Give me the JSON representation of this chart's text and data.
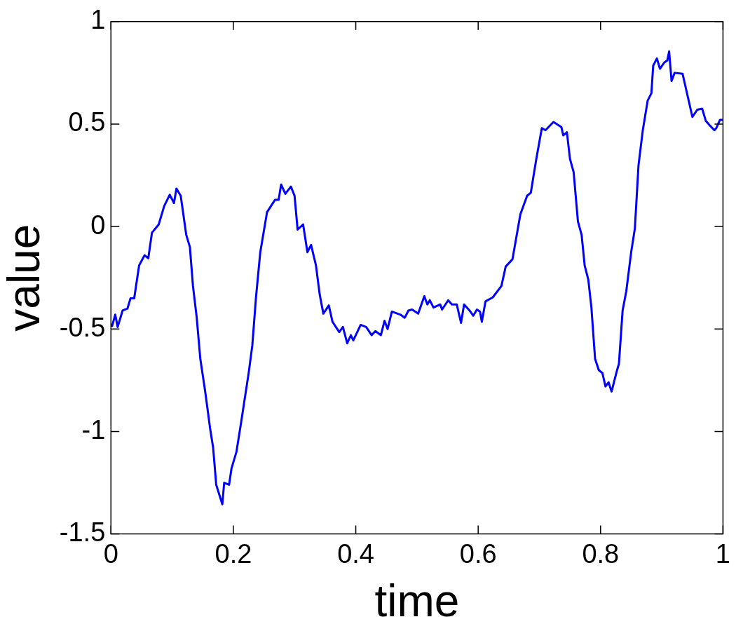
{
  "chart_data": {
    "type": "line",
    "xlabel": "time",
    "ylabel": "value",
    "xlim": [
      0,
      1
    ],
    "ylim": [
      -1.5,
      1
    ],
    "xticks": [
      0,
      0.2,
      0.4,
      0.6,
      0.8,
      1
    ],
    "yticks": [
      -1.5,
      -1,
      -0.5,
      0,
      0.5,
      1
    ],
    "grid": false,
    "legend": false,
    "marker": "none",
    "line_style": "solid",
    "series": [
      {
        "color": "#0000ff",
        "x": [
          0,
          0.002,
          0.007,
          0.011,
          0.019,
          0.027,
          0.032,
          0.038,
          0.046,
          0.055,
          0.061,
          0.067,
          0.078,
          0.087,
          0.096,
          0.103,
          0.107,
          0.114,
          0.123,
          0.129,
          0.134,
          0.14,
          0.146,
          0.154,
          0.162,
          0.167,
          0.172,
          0.182,
          0.185,
          0.193,
          0.197,
          0.205,
          0.213,
          0.225,
          0.231,
          0.237,
          0.244,
          0.255,
          0.268,
          0.274,
          0.278,
          0.285,
          0.294,
          0.3,
          0.305,
          0.314,
          0.321,
          0.327,
          0.335,
          0.341,
          0.347,
          0.356,
          0.362,
          0.373,
          0.379,
          0.386,
          0.392,
          0.396,
          0.408,
          0.417,
          0.426,
          0.432,
          0.441,
          0.447,
          0.452,
          0.459,
          0.473,
          0.48,
          0.486,
          0.492,
          0.502,
          0.512,
          0.517,
          0.521,
          0.527,
          0.538,
          0.541,
          0.551,
          0.557,
          0.565,
          0.572,
          0.577,
          0.586,
          0.592,
          0.598,
          0.603,
          0.606,
          0.612,
          0.624,
          0.638,
          0.645,
          0.656,
          0.669,
          0.68,
          0.686,
          0.695,
          0.704,
          0.71,
          0.723,
          0.736,
          0.739,
          0.745,
          0.75,
          0.756,
          0.763,
          0.769,
          0.774,
          0.78,
          0.785,
          0.791,
          0.797,
          0.803,
          0.808,
          0.813,
          0.818,
          0.827,
          0.83,
          0.836,
          0.842,
          0.85,
          0.856,
          0.862,
          0.869,
          0.877,
          0.883,
          0.886,
          0.892,
          0.897,
          0.904,
          0.909,
          0.912,
          0.916,
          0.921,
          0.934,
          0.942,
          0.95,
          0.958,
          0.966,
          0.972,
          0.978,
          0.986,
          0.989,
          0.995,
          1
        ],
        "values": [
          -0.48,
          -0.485,
          -0.43,
          -0.49,
          -0.41,
          -0.4,
          -0.35,
          -0.35,
          -0.19,
          -0.14,
          -0.155,
          -0.03,
          0.01,
          0.1,
          0.155,
          0.115,
          0.185,
          0.15,
          -0.04,
          -0.1,
          -0.29,
          -0.44,
          -0.645,
          -0.805,
          -0.985,
          -1.08,
          -1.26,
          -1.355,
          -1.25,
          -1.26,
          -1.18,
          -1.1,
          -0.95,
          -0.715,
          -0.58,
          -0.345,
          -0.125,
          0.07,
          0.13,
          0.13,
          0.205,
          0.16,
          0.195,
          0.15,
          -0.015,
          0.01,
          -0.125,
          -0.09,
          -0.19,
          -0.33,
          -0.425,
          -0.385,
          -0.465,
          -0.515,
          -0.49,
          -0.57,
          -0.53,
          -0.555,
          -0.48,
          -0.49,
          -0.53,
          -0.51,
          -0.53,
          -0.46,
          -0.5,
          -0.415,
          -0.43,
          -0.445,
          -0.41,
          -0.405,
          -0.425,
          -0.34,
          -0.38,
          -0.36,
          -0.395,
          -0.38,
          -0.405,
          -0.36,
          -0.38,
          -0.38,
          -0.47,
          -0.38,
          -0.41,
          -0.435,
          -0.405,
          -0.415,
          -0.465,
          -0.365,
          -0.345,
          -0.29,
          -0.195,
          -0.16,
          0.06,
          0.15,
          0.165,
          0.33,
          0.48,
          0.47,
          0.51,
          0.485,
          0.445,
          0.46,
          0.33,
          0.265,
          0.025,
          -0.04,
          -0.19,
          -0.26,
          -0.395,
          -0.645,
          -0.7,
          -0.715,
          -0.78,
          -0.76,
          -0.805,
          -0.7,
          -0.67,
          -0.41,
          -0.315,
          -0.125,
          -0.01,
          0.3,
          0.47,
          0.615,
          0.65,
          0.785,
          0.82,
          0.77,
          0.8,
          0.81,
          0.855,
          0.71,
          0.75,
          0.745,
          0.64,
          0.535,
          0.57,
          0.575,
          0.515,
          0.495,
          0.47,
          0.48,
          0.52,
          0.52
        ]
      }
    ]
  }
}
